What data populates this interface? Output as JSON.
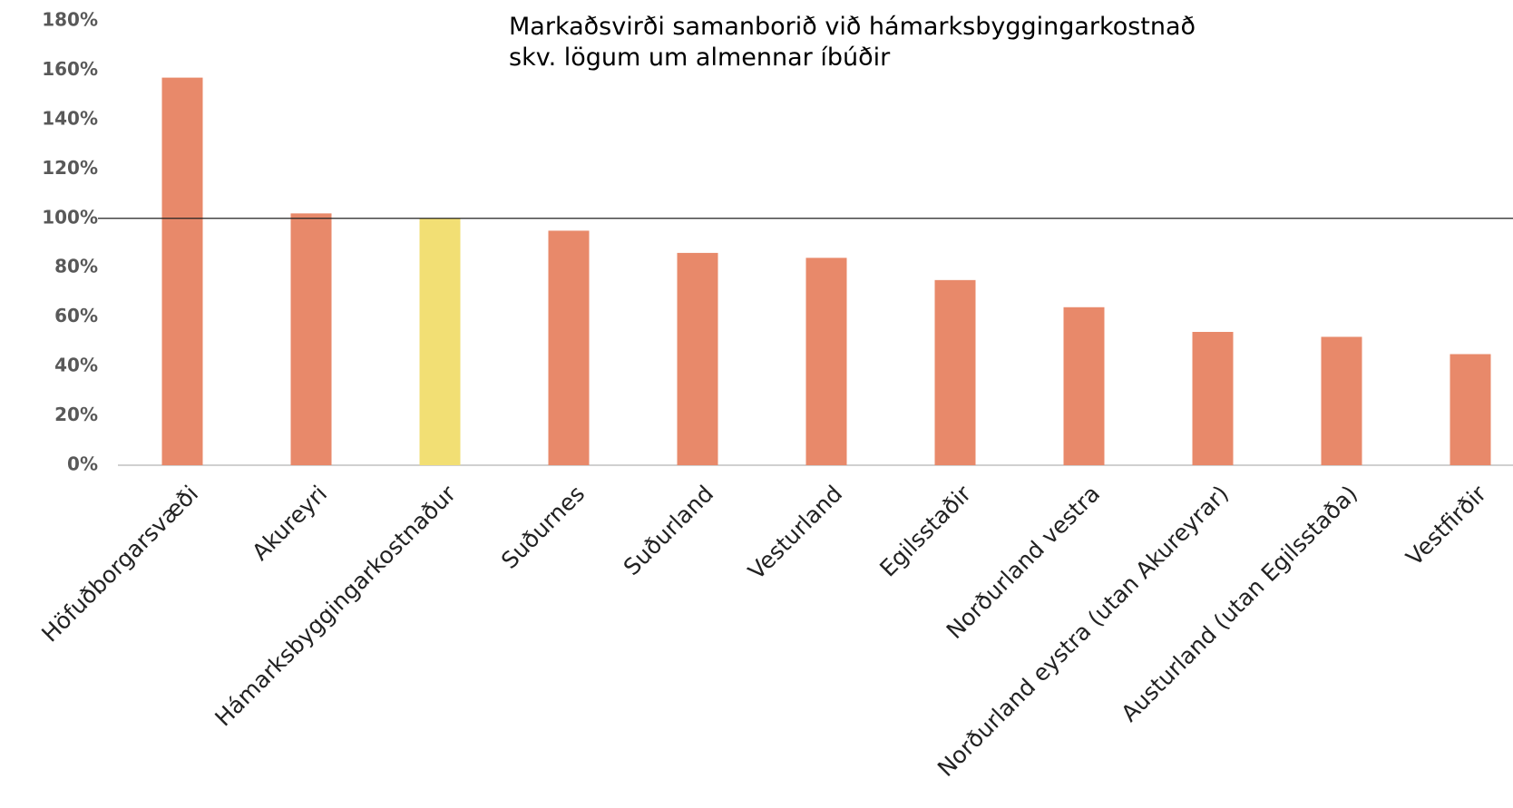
{
  "chart_data": {
    "type": "bar",
    "title": "Markaðsvirði samanborið við hámarksbyggingarkostnað",
    "subtitle": "skv. lögum um almennar íbúðir",
    "categories": [
      "Höfuðborgarsvæði",
      "Akureyri",
      "Hámarksbyggingarkostnaður",
      "Suðurnes",
      "Suðurland",
      "Vesturland",
      "Egilsstaðir",
      "Norðurland vestra",
      "Norðurland eystra (utan Akureyrar)",
      "Austurland (utan Egilsstaða)",
      "Vestfirðir"
    ],
    "values": [
      157,
      102,
      100,
      95,
      86,
      84,
      75,
      64,
      54,
      52,
      45
    ],
    "colors": [
      "#e8896a",
      "#e8896a",
      "#f2df74",
      "#e8896a",
      "#e8896a",
      "#e8896a",
      "#e8896a",
      "#e8896a",
      "#e8896a",
      "#e8896a",
      "#e8896a"
    ],
    "ylim": [
      0,
      180
    ],
    "yticks": [
      {
        "value": 0,
        "label": "0%"
      },
      {
        "value": 20,
        "label": "20%"
      },
      {
        "value": 40,
        "label": "40%"
      },
      {
        "value": 60,
        "label": "60%"
      },
      {
        "value": 80,
        "label": "80%"
      },
      {
        "value": 100,
        "label": "100%"
      },
      {
        "value": 120,
        "label": "120%"
      },
      {
        "value": 140,
        "label": "140%"
      },
      {
        "value": 160,
        "label": "160%"
      },
      {
        "value": 180,
        "label": "180%"
      }
    ],
    "reference_line": 100,
    "grid": false
  }
}
